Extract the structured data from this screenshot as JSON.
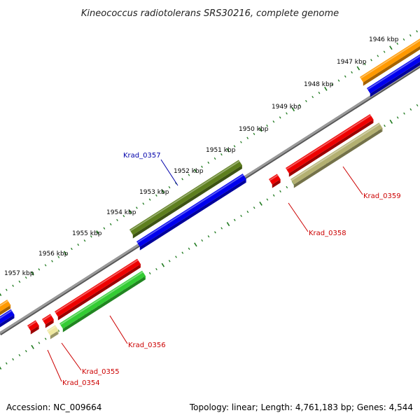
{
  "title": "Kineococcus radiotolerans SRS30216, complete genome",
  "footer": {
    "accession": "Accession: NC_009664",
    "topology": "Topology: linear; Length: 4,761,183 bp; Genes: 4,544"
  },
  "ruler": {
    "labels": [
      "1946 kbp",
      "1947 kbp",
      "1948 kbp",
      "1949 kbp",
      "1950 kbp",
      "1951 kbp",
      "1952 kbp",
      "1953 kbp",
      "1954 kbp",
      "1955 kbp",
      "1956 kbp",
      "1957 kbp"
    ]
  },
  "gene_labels": {
    "krad_0357": "Krad_0357",
    "krad_0359": "Krad_0359",
    "krad_0358": "Krad_0358",
    "krad_0356": "Krad_0356",
    "krad_0355": "Krad_0355",
    "krad_0354": "Krad_0354"
  },
  "colors": {
    "backbone": "#7f7f7f",
    "ticks": "#1f7a1f",
    "gene": "#ee0000",
    "cds_green": "#33cc33",
    "cds_olive": "#5e7f1e",
    "cds_khaki": "#b3b071",
    "cds_yellow": "#eee8a0",
    "cds_blue": "#0000ee",
    "cds_orange": "#ff9900",
    "label_blue": "#0000aa",
    "label_red": "#cc0000"
  }
}
